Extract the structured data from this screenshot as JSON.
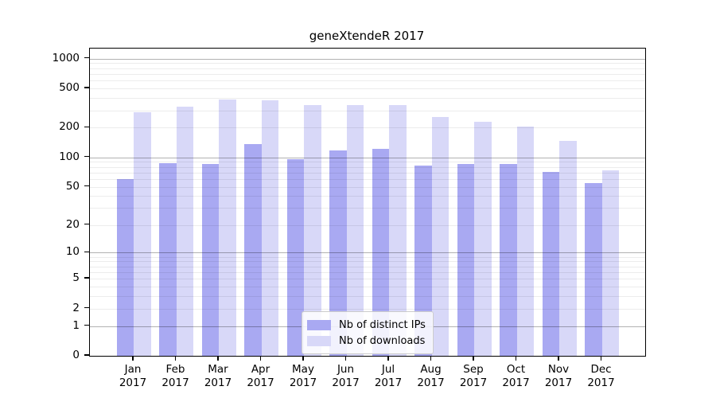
{
  "chart_data": {
    "type": "bar",
    "title": "geneXtendeR 2017",
    "categories": [
      "Jan",
      "Feb",
      "Mar",
      "Apr",
      "May",
      "Jun",
      "Jul",
      "Aug",
      "Sep",
      "Oct",
      "Nov",
      "Dec"
    ],
    "x_tick_second_line": "2017",
    "series": [
      {
        "name": "Nb of distinct IPs",
        "color": "#a9a9f2",
        "values": [
          60,
          87,
          86,
          136,
          95,
          117,
          121,
          82,
          85,
          85,
          71,
          55
        ]
      },
      {
        "name": "Nb of downloads",
        "color": "#d8d8f8",
        "values": [
          290,
          326,
          385,
          380,
          339,
          340,
          340,
          255,
          228,
          206,
          148,
          73
        ]
      }
    ],
    "y_ticks": [
      1000,
      500,
      200,
      100,
      50,
      20,
      10,
      5,
      2,
      1,
      0
    ],
    "y_scale": "log10(1+x)",
    "ylim": [
      0,
      1270
    ],
    "grid": "horizontal, minor lines light gray, powers of 10 darker",
    "legend_position": "bottom-center-inside",
    "colors": {
      "axis": "#000000",
      "grid_minor": "#ededed",
      "grid_major": "#b5b5b5",
      "background": "#ffffff"
    }
  }
}
